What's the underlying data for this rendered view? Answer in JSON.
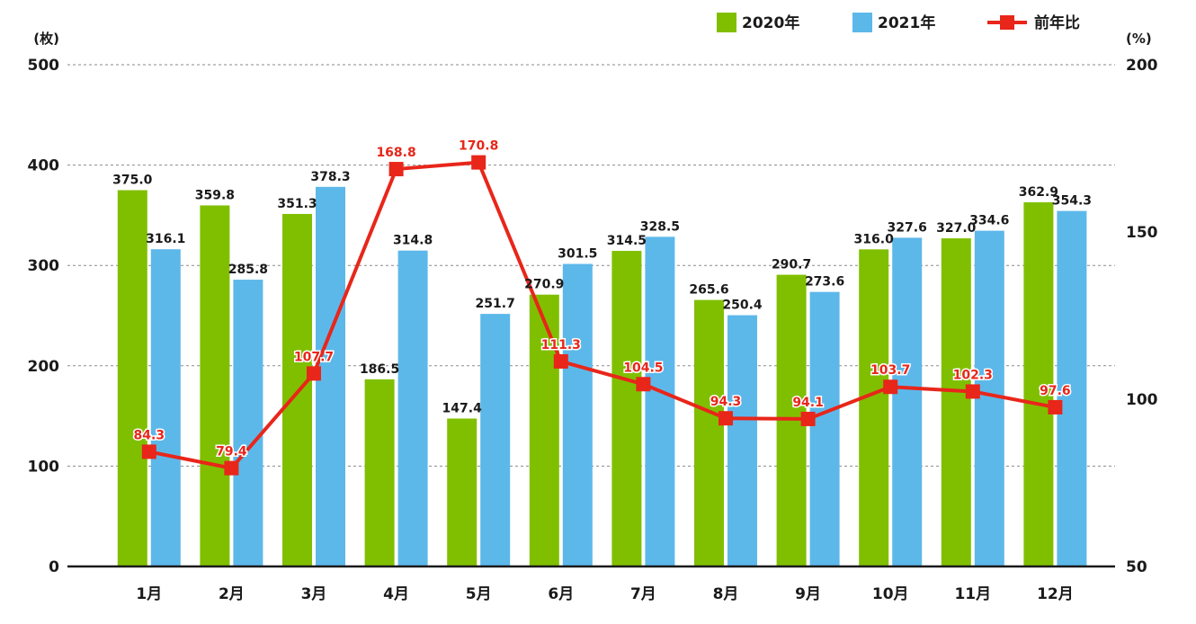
{
  "chart_data": {
    "type": "bar",
    "categories": [
      "1月",
      "2月",
      "3月",
      "4月",
      "5月",
      "6月",
      "7月",
      "8月",
      "9月",
      "10月",
      "11月",
      "12月"
    ],
    "series": [
      {
        "name": "2020年",
        "type": "bar",
        "axis": "left",
        "color": "#80bf00",
        "values": [
          375.0,
          359.8,
          351.3,
          186.5,
          147.4,
          270.9,
          314.5,
          265.6,
          290.7,
          316.0,
          327.0,
          362.9
        ],
        "labels": [
          "375.0",
          "359.8",
          "351.3",
          "186.5",
          "147.4",
          "270.9",
          "314.5",
          "265.6",
          "290.7",
          "316.0",
          "327.0",
          "362.9"
        ]
      },
      {
        "name": "2021年",
        "type": "bar",
        "axis": "left",
        "color": "#5db8ea",
        "values": [
          316.1,
          285.8,
          378.3,
          314.8,
          251.7,
          301.5,
          328.5,
          250.4,
          273.6,
          327.6,
          334.6,
          354.3
        ],
        "labels": [
          "316.1",
          "285.8",
          "378.3",
          "314.8",
          "251.7",
          "301.5",
          "328.5",
          "250.4",
          "273.6",
          "327.6",
          "334.6",
          "354.3"
        ]
      },
      {
        "name": "前年比",
        "type": "line",
        "axis": "right",
        "color": "#e8261a",
        "values": [
          84.3,
          79.4,
          107.7,
          168.8,
          170.8,
          111.3,
          104.5,
          94.3,
          94.1,
          103.7,
          102.3,
          97.6
        ],
        "labels": [
          "84.3",
          "79.4",
          "107.7",
          "168.8",
          "170.8",
          "111.3",
          "104.5",
          "94.3",
          "94.1",
          "103.7",
          "102.3",
          "97.6"
        ]
      }
    ],
    "y_left": {
      "unit": "(枚)",
      "ylim": [
        0,
        500
      ],
      "ticks": [
        "0",
        "100",
        "200",
        "300",
        "400",
        "500"
      ]
    },
    "y_right": {
      "unit": "(%)",
      "ylim": [
        50,
        200
      ],
      "ticks": [
        "50",
        "100",
        "150",
        "200"
      ]
    },
    "grid": true,
    "legend": "top-right"
  }
}
